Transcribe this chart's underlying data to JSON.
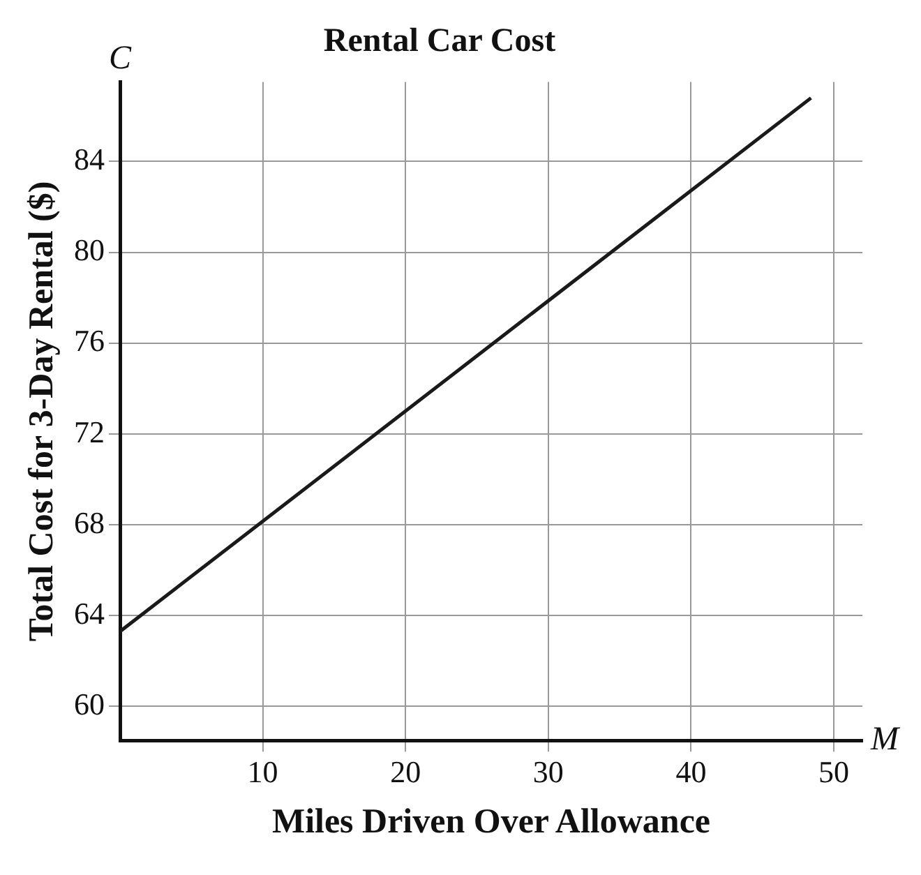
{
  "chart_data": {
    "type": "line",
    "title": "Rental Car Cost",
    "xlabel": "Miles Driven Over Allowance",
    "ylabel": "Total Cost for 3-Day Rental ($)",
    "x": [
      0,
      48.4
    ],
    "series": [
      {
        "color": "#1a1a1a",
        "values": [
          63.3,
          86.8
        ]
      }
    ],
    "xlim": [
      0,
      52
    ],
    "xticks": [
      10,
      20,
      30,
      40,
      50
    ],
    "ylim": [
      58.5,
      87.5
    ],
    "yticks": [
      60,
      64,
      68,
      72,
      76,
      80,
      84
    ],
    "annotations": [
      "C",
      "M"
    ],
    "grid": true,
    "legend": false,
    "marker": "none",
    "line_style": "solid"
  }
}
